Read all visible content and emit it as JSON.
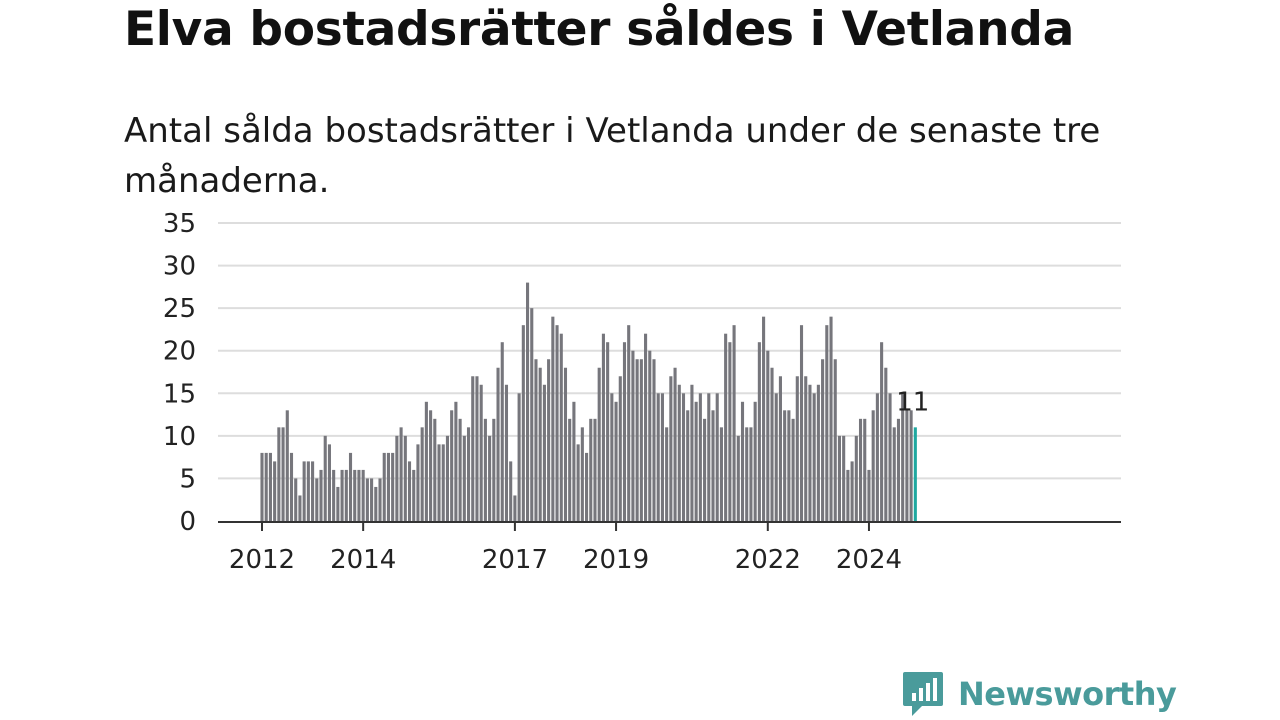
{
  "title": "Elva bostadsrätter såldes i Vetlanda",
  "subtitle": "Antal sålda bostadsrätter i Vetlanda under de senaste tre månaderna.",
  "brand": {
    "name": "Newsworthy",
    "icon": "newsworthy-logo-icon",
    "color": "#4a9b9b"
  },
  "colors": {
    "bar": "#76767c",
    "highlight": "#1fa8a0",
    "grid": "#dddddd",
    "axis": "#333333"
  },
  "chart_data": {
    "type": "bar",
    "title": "Elva bostadsrätter såldes i Vetlanda",
    "subtitle": "Antal sålda bostadsrätter i Vetlanda under de senaste tre månaderna.",
    "xlabel": "",
    "ylabel": "",
    "ylim": [
      0,
      35
    ],
    "yticks": [
      0,
      5,
      10,
      15,
      20,
      25,
      30,
      35
    ],
    "xticks": [
      {
        "label": "2012",
        "index": 0
      },
      {
        "label": "2014",
        "index": 24
      },
      {
        "label": "2017",
        "index": 60
      },
      {
        "label": "2019",
        "index": 84
      },
      {
        "label": "2022",
        "index": 120
      },
      {
        "label": "2024",
        "index": 144
      }
    ],
    "start": "2012-01",
    "frequency": "monthly",
    "grid": true,
    "legend": "none",
    "highlight_last": true,
    "last_label": "11",
    "values": [
      8,
      8,
      8,
      7,
      11,
      11,
      13,
      8,
      5,
      3,
      7,
      7,
      7,
      5,
      6,
      10,
      9,
      6,
      4,
      6,
      6,
      8,
      6,
      6,
      6,
      5,
      5,
      4,
      5,
      8,
      8,
      8,
      10,
      11,
      10,
      7,
      6,
      9,
      11,
      14,
      13,
      12,
      9,
      9,
      10,
      13,
      14,
      12,
      10,
      11,
      17,
      17,
      16,
      12,
      10,
      12,
      18,
      21,
      16,
      7,
      3,
      15,
      23,
      28,
      25,
      19,
      18,
      16,
      19,
      24,
      23,
      22,
      18,
      12,
      14,
      9,
      11,
      8,
      12,
      12,
      18,
      22,
      21,
      15,
      14,
      17,
      21,
      23,
      20,
      19,
      19,
      22,
      20,
      19,
      15,
      15,
      11,
      17,
      18,
      16,
      15,
      13,
      16,
      14,
      15,
      12,
      15,
      13,
      15,
      11,
      22,
      21,
      23,
      10,
      14,
      11,
      11,
      14,
      21,
      24,
      20,
      18,
      15,
      17,
      13,
      13,
      12,
      17,
      23,
      17,
      16,
      15,
      16,
      19,
      23,
      24,
      19,
      10,
      10,
      6,
      7,
      10,
      12,
      12,
      6,
      13,
      15,
      21,
      18,
      15,
      11,
      12,
      15,
      13,
      13,
      11
    ]
  }
}
